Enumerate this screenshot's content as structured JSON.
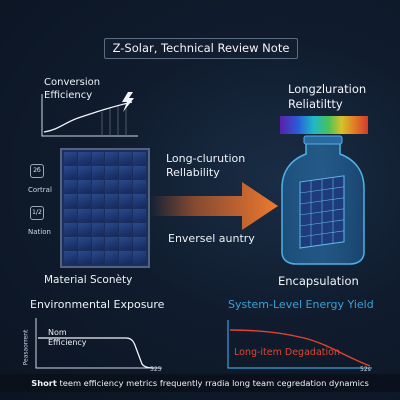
{
  "title": "Z-Solar, Technical Review Note",
  "efficiency_label": "Conversion Efficiency",
  "duration_label_top_right": "Longzluration Reliatiltty",
  "middle_reliability": "Long-clurution Rellability",
  "enversel_label": "Enversel auntry",
  "icon_top": "2б",
  "icon_top_label": "Cortral",
  "icon_bottom": "1/2",
  "icon_bottom_label": "Nation",
  "material_label": "Material Sconèty",
  "encapsulation_label": "Encapsulation",
  "env_exposure_label": "Environmental Exposure",
  "system_yield_label": "System-Level Energy Yield",
  "nom_efficiency_label": "Nom Efficiency",
  "bottom_chart_ylabel": "Peasaorrent",
  "bottom_chart_xtick": "525",
  "right_chart_xtick": "52s",
  "degradation_label": "Long-item Degadation",
  "footer_bold": "Short",
  "footer_rest": " teem efficiency metrics frequently rradia long team cegredation dynamics",
  "colors": {
    "arrow": "#e2692a",
    "accent_blue": "#3aa0d8",
    "degradation_red": "#e0452f",
    "panel": "#1d3670"
  }
}
